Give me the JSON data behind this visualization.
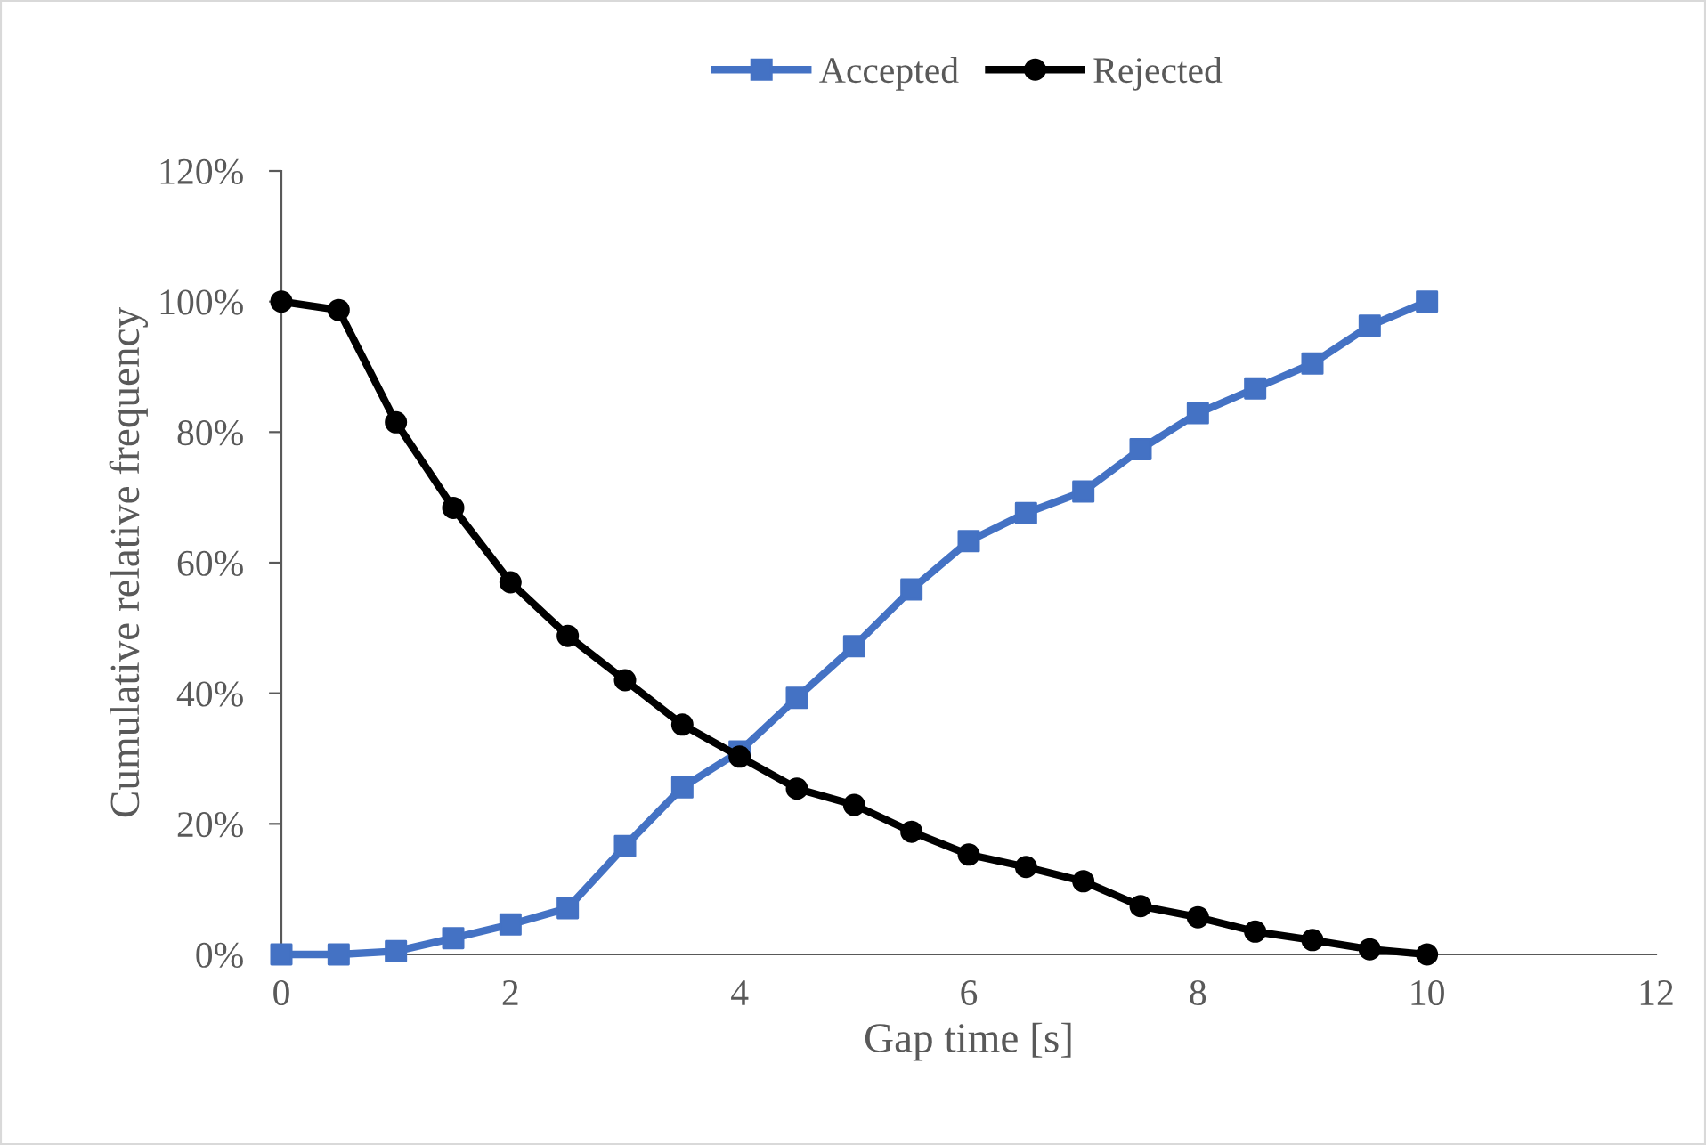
{
  "chart_data": {
    "type": "line",
    "xlabel": "Gap time [s]",
    "ylabel": "Cumulative relative frequency",
    "x": [
      0,
      0.5,
      1,
      1.5,
      2,
      2.5,
      3,
      3.5,
      4,
      4.5,
      5,
      5.5,
      6,
      6.5,
      7,
      7.5,
      8,
      8.5,
      9,
      9.5,
      10
    ],
    "series": [
      {
        "name": "Accepted",
        "color": "#4472c4",
        "marker": "square",
        "values": [
          0,
          0,
          0.5,
          2.5,
          4.6,
          7.1,
          16.6,
          25.6,
          31.1,
          39.3,
          47.2,
          55.9,
          63.3,
          67.6,
          70.9,
          77.4,
          82.9,
          86.7,
          90.5,
          96.3,
          100
        ]
      },
      {
        "name": "Rejected",
        "color": "#000000",
        "marker": "circle",
        "values": [
          100,
          98.7,
          81.5,
          68.4,
          57.0,
          48.8,
          42.0,
          35.2,
          30.3,
          25.4,
          22.9,
          18.8,
          15.3,
          13.4,
          11.2,
          7.4,
          5.7,
          3.5,
          2.2,
          0.8,
          0
        ]
      }
    ],
    "xlim": [
      0,
      12
    ],
    "xticks": [
      0,
      2,
      4,
      6,
      8,
      10,
      12
    ],
    "ylim": [
      0,
      120
    ],
    "yticks": [
      {
        "value": 0,
        "label": "0%"
      },
      {
        "value": 20,
        "label": "20%"
      },
      {
        "value": 40,
        "label": "40%"
      },
      {
        "value": 60,
        "label": "60%"
      },
      {
        "value": 80,
        "label": "80%"
      },
      {
        "value": 100,
        "label": "100%"
      },
      {
        "value": 120,
        "label": "120%"
      }
    ],
    "grid": false,
    "legend": "top",
    "line_style": "solid"
  }
}
